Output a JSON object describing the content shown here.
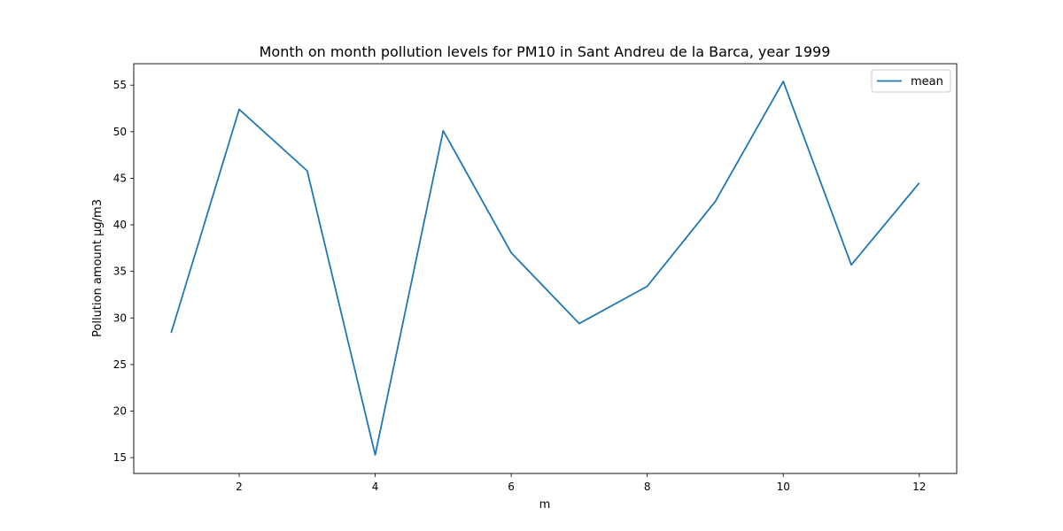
{
  "chart_data": {
    "type": "line",
    "title": "Month on month pollution levels for PM10 in Sant Andreu de la Barca, year 1999",
    "xlabel": "m",
    "ylabel": "Pollution amount μg/m3",
    "xlim": [
      0.45,
      12.55
    ],
    "ylim": [
      13.3,
      57.3
    ],
    "x_ticks": [
      2,
      4,
      6,
      8,
      10,
      12
    ],
    "y_ticks": [
      15,
      20,
      25,
      30,
      35,
      40,
      45,
      50,
      55
    ],
    "grid": false,
    "legend_position": "top-right",
    "series": [
      {
        "name": "mean",
        "color": "#1f77b4",
        "x": [
          1,
          2,
          3,
          4,
          5,
          6,
          7,
          8,
          9,
          10,
          11,
          12
        ],
        "y": [
          28.4,
          52.4,
          45.8,
          15.3,
          50.1,
          37.0,
          29.4,
          33.4,
          42.5,
          55.4,
          35.7,
          44.5
        ]
      }
    ]
  }
}
